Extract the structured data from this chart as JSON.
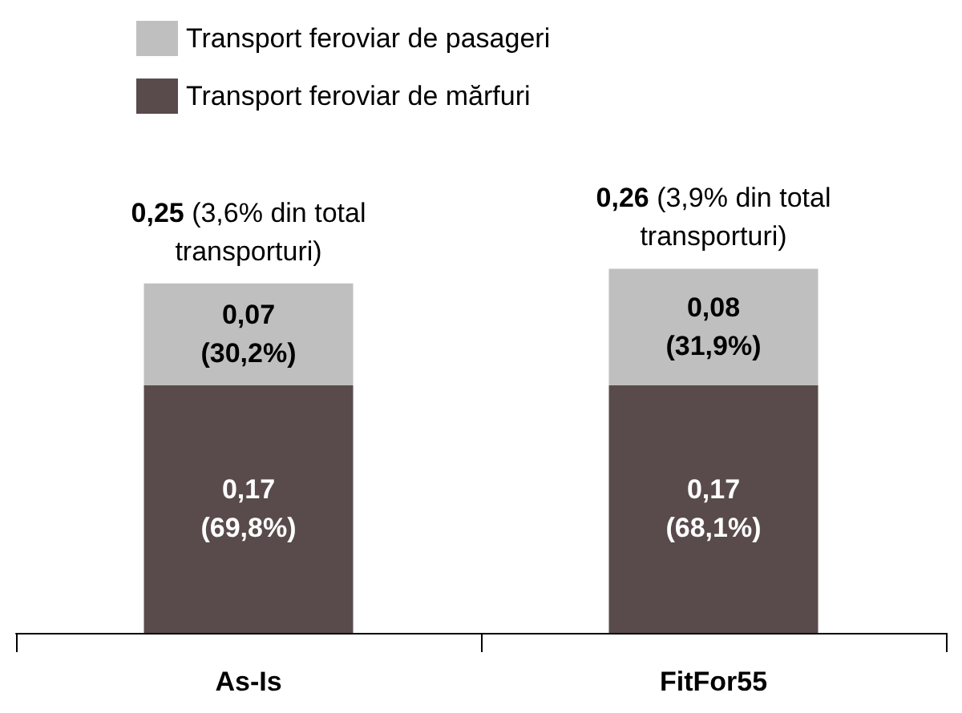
{
  "chart_data": {
    "type": "bar",
    "stacked": true,
    "categories": [
      "As-Is",
      "FitFor55"
    ],
    "series": [
      {
        "name": "Transport feroviar de mărfuri",
        "color": "#594b4b",
        "values": [
          0.17,
          0.17
        ],
        "value_labels": [
          "0,17 (69,8%)",
          "0,17 (68,1%)"
        ]
      },
      {
        "name": "Transport feroviar de pasageri",
        "color": "#bfbfbf",
        "values": [
          0.07,
          0.08
        ],
        "value_labels": [
          "0,07 (30,2%)",
          "0,08 (31,9%)"
        ]
      }
    ],
    "totals": [
      "0,25 (3,6% din total transporturi)",
      "0,26 (3,9% din total transporturi)"
    ],
    "legend": "top left"
  }
}
